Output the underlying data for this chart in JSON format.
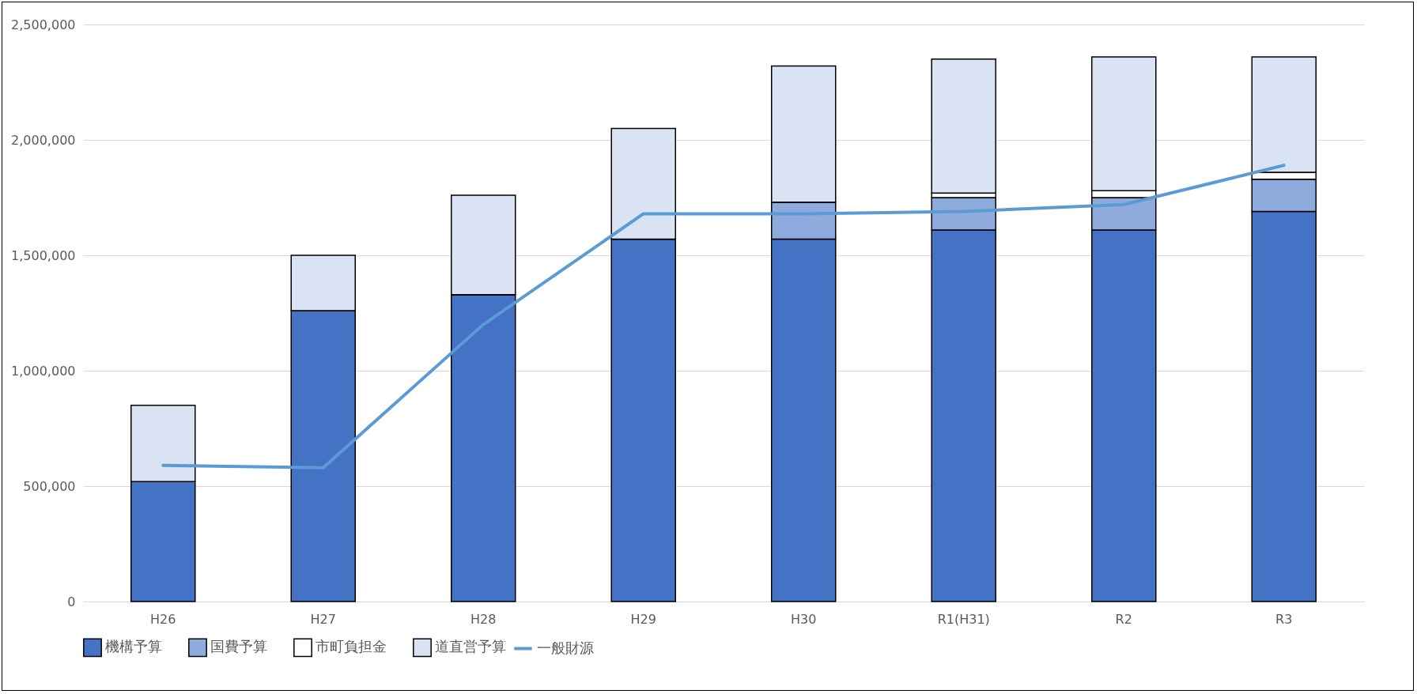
{
  "chart_data": {
    "type": "bar",
    "stacked": true,
    "categories": [
      "H26",
      "H27",
      "H28",
      "H29",
      "H30",
      "R1(H31)",
      "R2",
      "R3"
    ],
    "series": [
      {
        "name": "機構予算",
        "color": "#4472c4",
        "values": [
          520000,
          1260000,
          1330000,
          1570000,
          1570000,
          1610000,
          1610000,
          1690000
        ]
      },
      {
        "name": "国費予算",
        "color": "#8faadc",
        "values": [
          0,
          0,
          0,
          0,
          160000,
          140000,
          140000,
          140000
        ]
      },
      {
        "name": "市町負担金",
        "color": "#ffffff",
        "values": [
          0,
          0,
          0,
          0,
          0,
          20000,
          30000,
          30000
        ]
      },
      {
        "name": "道直営予算",
        "color": "#dae3f3",
        "values": [
          330000,
          240000,
          430000,
          480000,
          590000,
          580000,
          580000,
          500000
        ]
      },
      {
        "name": "一般財源",
        "type": "line",
        "color": "#5b9bd5",
        "values": [
          590000,
          580000,
          1200000,
          1680000,
          1680000,
          1690000,
          1720000,
          1890000
        ]
      }
    ],
    "ylim": [
      0,
      2500000
    ],
    "yticks": [
      0,
      {
        "value": 500000,
        "label": "500,000"
      },
      {
        "value": 1000000,
        "label": "1,000,000"
      },
      {
        "value": 1500000,
        "label": "1,500,000"
      },
      {
        "value": 2000000,
        "label": "2,000,000"
      },
      {
        "value": 2500000,
        "label": "2,500,000"
      }
    ],
    "grid": "y",
    "legend": "bottom",
    "marker": "none",
    "line_style": "solid"
  }
}
